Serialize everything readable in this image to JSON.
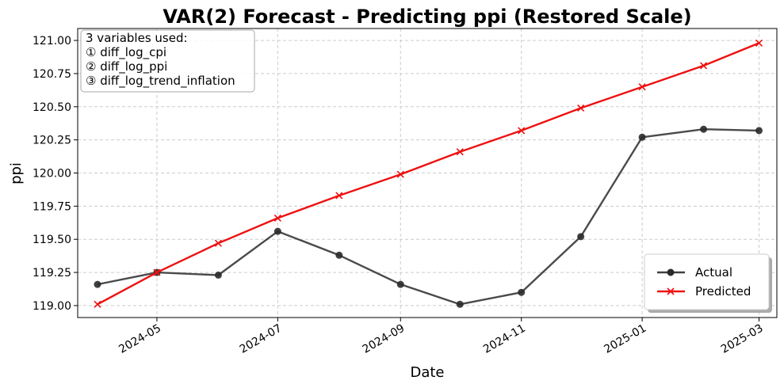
{
  "chart_data": {
    "type": "line",
    "title": "VAR(2) Forecast - Predicting ppi (Restored Scale)",
    "xlabel": "Date",
    "ylabel": "ppi",
    "x": [
      "2024-04",
      "2024-05",
      "2024-06",
      "2024-07",
      "2024-08",
      "2024-09",
      "2024-10",
      "2024-11",
      "2024-12",
      "2025-01",
      "2025-02",
      "2025-03"
    ],
    "x_ticks": [
      "2024-05",
      "2024-07",
      "2024-09",
      "2024-11",
      "2025-01",
      "2025-03"
    ],
    "y_ticks": [
      "119.00",
      "119.25",
      "119.50",
      "119.75",
      "120.00",
      "120.25",
      "120.50",
      "120.75",
      "121.00"
    ],
    "ylim": [
      118.91,
      121.09
    ],
    "grid": true,
    "legend_position": "lower-right",
    "series": [
      {
        "name": "Actual",
        "color": "#404040",
        "marker": "circle",
        "values": [
          119.16,
          119.25,
          119.23,
          119.56,
          119.38,
          119.16,
          119.01,
          119.1,
          119.52,
          120.27,
          120.33,
          120.32
        ]
      },
      {
        "name": "Predicted",
        "color": "#ee1111",
        "marker": "x",
        "values": [
          119.01,
          119.25,
          119.47,
          119.66,
          119.83,
          119.99,
          120.16,
          120.32,
          120.49,
          120.65,
          120.81,
          120.98
        ]
      }
    ],
    "annotation": {
      "lines": [
        "3 variables used:",
        "① diff_log_cpi",
        "② diff_log_ppi",
        "③ diff_log_trend_inflation"
      ]
    }
  }
}
